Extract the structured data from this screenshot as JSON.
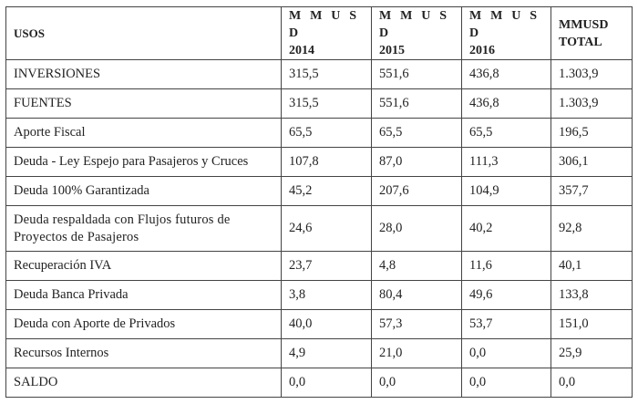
{
  "header": {
    "label": "USOS",
    "columns": [
      {
        "line1": "M M U S D",
        "line2": "2014"
      },
      {
        "line1": "M M U S D",
        "line2": "2015"
      },
      {
        "line1": "M M U S D",
        "line2": "2016"
      },
      {
        "line1": "MMUSD",
        "line2": "TOTAL"
      }
    ]
  },
  "rows": [
    {
      "label": "INVERSIONES",
      "values": [
        "315,5",
        "551,6",
        "436,8",
        "1.303,9"
      ]
    },
    {
      "label": "FUENTES",
      "values": [
        "315,5",
        "551,6",
        "436,8",
        "1.303,9"
      ]
    },
    {
      "label": "Aporte Fiscal",
      "values": [
        "65,5",
        "65,5",
        "65,5",
        "196,5"
      ]
    },
    {
      "label": "Deuda - Ley Espejo para Pasajeros y Cruces",
      "values": [
        "107,8",
        "87,0",
        "111,3",
        "306,1"
      ]
    },
    {
      "label": "Deuda 100% Garantizada",
      "values": [
        "45,2",
        "207,6",
        "104,9",
        "357,7"
      ]
    },
    {
      "label": "Deuda respaldada con Flujos futuros de Proyectos de Pasajeros",
      "values": [
        "24,6",
        "28,0",
        "40,2",
        "92,8"
      ]
    },
    {
      "label": "Recuperación IVA",
      "values": [
        "23,7",
        "4,8",
        "11,6",
        "40,1"
      ]
    },
    {
      "label": "Deuda Banca Privada",
      "values": [
        "3,8",
        "80,4",
        "49,6",
        "133,8"
      ]
    },
    {
      "label": "Deuda con Aporte de Privados",
      "values": [
        "40,0",
        "57,3",
        "53,7",
        "151,0"
      ]
    },
    {
      "label": "Recursos Internos",
      "values": [
        "4,9",
        "21,0",
        "0,0",
        "25,9"
      ]
    },
    {
      "label": "SALDO",
      "values": [
        "0,0",
        "0,0",
        "0,0",
        "0,0"
      ]
    }
  ]
}
